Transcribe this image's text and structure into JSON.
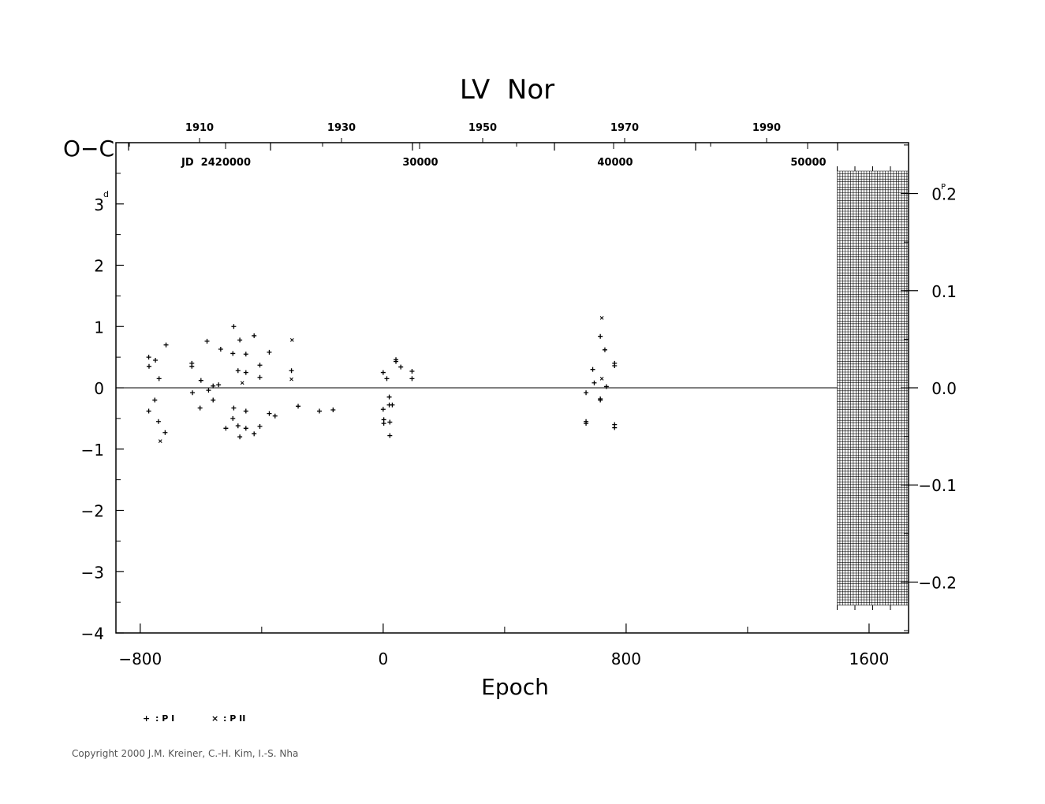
{
  "chart_data": {
    "type": "scatter",
    "title": "LV  Nor",
    "xlabel": "Epoch",
    "ylabel": "O−C",
    "ylabel_unit": "d",
    "xlim": [
      -880,
      1730
    ],
    "ylim": [
      -4,
      4
    ],
    "x_ticks": [
      -800,
      0,
      800,
      1600
    ],
    "x_tick_labels": [
      "−800",
      "0",
      "800",
      "1600"
    ],
    "y_ticks": [
      -4,
      -3,
      -2,
      -1,
      0,
      1,
      2,
      3
    ],
    "y_tick_labels": [
      "−4",
      "−3",
      "−2",
      "−1",
      "0",
      "1",
      "2",
      "3"
    ],
    "y2_unit": "P",
    "y2_ticks": [
      0.2,
      0.1,
      0.0,
      -0.1,
      -0.2
    ],
    "y2_tick_labels": [
      "0.2",
      "0.1",
      "0.0",
      "−0.1",
      "−0.2"
    ],
    "top_year_ticks": [
      "1910",
      "1930",
      "1950",
      "1970",
      "1990"
    ],
    "top_jd_ticks": [
      "JD  2420000",
      "30000",
      "40000",
      "50000"
    ],
    "zero_line": true,
    "hatched_region_epoch": [
      1495,
      1730
    ],
    "series": [
      {
        "name": "P I",
        "marker": "+",
        "points": [
          [
            -772,
            0.5
          ],
          [
            -771,
            0.35
          ],
          [
            -772,
            -0.38
          ],
          [
            -750,
            0.45
          ],
          [
            -752,
            -0.2
          ],
          [
            -738,
            0.15
          ],
          [
            -740,
            -0.55
          ],
          [
            -715,
            0.7
          ],
          [
            -718,
            -0.73
          ],
          [
            -630,
            0.4
          ],
          [
            -630,
            0.35
          ],
          [
            -628,
            -0.08
          ],
          [
            -600,
            0.12
          ],
          [
            -603,
            -0.33
          ],
          [
            -580,
            0.76
          ],
          [
            -575,
            -0.04
          ],
          [
            -560,
            0.03
          ],
          [
            -560,
            -0.2
          ],
          [
            -542,
            0.05
          ],
          [
            -535,
            0.63
          ],
          [
            -518,
            -0.66
          ],
          [
            -492,
            1.0
          ],
          [
            -495,
            0.56
          ],
          [
            -492,
            -0.33
          ],
          [
            -495,
            -0.5
          ],
          [
            -478,
            0.28
          ],
          [
            -472,
            0.78
          ],
          [
            -478,
            -0.62
          ],
          [
            -472,
            -0.8
          ],
          [
            -452,
            0.55
          ],
          [
            -452,
            0.25
          ],
          [
            -452,
            -0.38
          ],
          [
            -452,
            -0.66
          ],
          [
            -425,
            0.85
          ],
          [
            -425,
            -0.75
          ],
          [
            -406,
            0.37
          ],
          [
            -406,
            0.17
          ],
          [
            -406,
            -0.63
          ],
          [
            -375,
            0.58
          ],
          [
            -375,
            -0.42
          ],
          [
            -356,
            -0.46
          ],
          [
            -302,
            0.28
          ],
          [
            -280,
            -0.3
          ],
          [
            -210,
            -0.38
          ],
          [
            -165,
            -0.36
          ],
          [
            0,
            0.25
          ],
          [
            0,
            -0.35
          ],
          [
            2,
            -0.52
          ],
          [
            2,
            -0.58
          ],
          [
            12,
            0.15
          ],
          [
            20,
            -0.15
          ],
          [
            20,
            -0.28
          ],
          [
            22,
            -0.56
          ],
          [
            22,
            -0.78
          ],
          [
            30,
            -0.28
          ],
          [
            42,
            0.46
          ],
          [
            42,
            0.43
          ],
          [
            58,
            0.34
          ],
          [
            95,
            0.27
          ],
          [
            95,
            0.15
          ],
          [
            668,
            -0.08
          ],
          [
            668,
            -0.55
          ],
          [
            668,
            -0.58
          ],
          [
            690,
            0.3
          ],
          [
            695,
            0.08
          ],
          [
            715,
            0.84
          ],
          [
            715,
            -0.18
          ],
          [
            715,
            -0.2
          ],
          [
            730,
            0.62
          ],
          [
            735,
            0.02
          ],
          [
            762,
            0.4
          ],
          [
            762,
            0.36
          ],
          [
            762,
            -0.6
          ],
          [
            762,
            -0.65
          ]
        ]
      },
      {
        "name": "P II",
        "marker": "×",
        "points": [
          [
            -734,
            -0.87
          ],
          [
            -464,
            0.08
          ],
          [
            -300,
            0.78
          ],
          [
            -302,
            0.14
          ],
          [
            720,
            1.14
          ],
          [
            720,
            0.15
          ]
        ]
      }
    ],
    "legend": [
      {
        "symbol": "+",
        "label": ": P I"
      },
      {
        "symbol": "×",
        "label": ": P II"
      }
    ]
  },
  "copyright": "Copyright 2000 J.M. Kreiner, C.-H. Kim, I.-S. Nha"
}
